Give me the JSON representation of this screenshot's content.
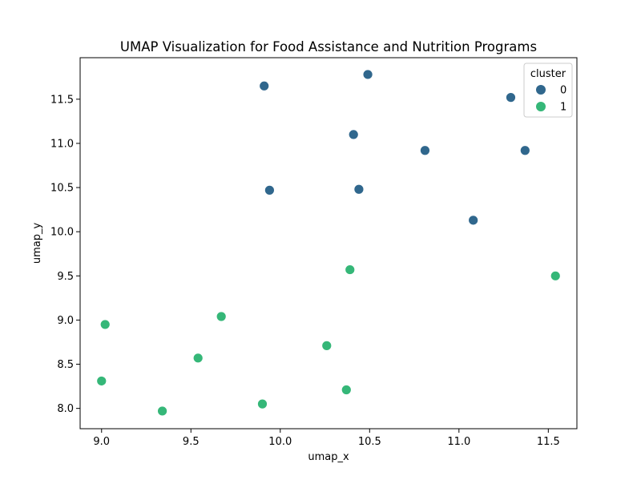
{
  "chart_data": {
    "type": "scatter",
    "title": "UMAP Visualization for Food Assistance and Nutrition Programs",
    "xlabel": "umap_x",
    "ylabel": "umap_y",
    "xlim": [
      8.88,
      11.66
    ],
    "ylim": [
      7.77,
      11.97
    ],
    "xticks": [
      {
        "value": 9.0,
        "label": "9.0"
      },
      {
        "value": 9.5,
        "label": "9.5"
      },
      {
        "value": 10.0,
        "label": "10.0"
      },
      {
        "value": 10.5,
        "label": "10.5"
      },
      {
        "value": 11.0,
        "label": "11.0"
      },
      {
        "value": 11.5,
        "label": "11.5"
      }
    ],
    "yticks": [
      {
        "value": 8.0,
        "label": "8.0"
      },
      {
        "value": 8.5,
        "label": "8.5"
      },
      {
        "value": 9.0,
        "label": "9.0"
      },
      {
        "value": 9.5,
        "label": "9.5"
      },
      {
        "value": 10.0,
        "label": "10.0"
      },
      {
        "value": 10.5,
        "label": "10.5"
      },
      {
        "value": 11.0,
        "label": "11.0"
      },
      {
        "value": 11.5,
        "label": "11.5"
      }
    ],
    "grid": false,
    "legend": {
      "title": "cluster",
      "placement": "top-right",
      "entries": [
        {
          "label": "0",
          "color": "#30678d"
        },
        {
          "label": "1",
          "color": "#35b778"
        }
      ]
    },
    "series": [
      {
        "name": "0",
        "color": "#30678d",
        "points": [
          {
            "x": 9.91,
            "y": 11.65
          },
          {
            "x": 10.49,
            "y": 11.78
          },
          {
            "x": 11.29,
            "y": 11.52
          },
          {
            "x": 10.41,
            "y": 11.1
          },
          {
            "x": 10.81,
            "y": 10.92
          },
          {
            "x": 11.37,
            "y": 10.92
          },
          {
            "x": 9.94,
            "y": 10.47
          },
          {
            "x": 10.44,
            "y": 10.48
          },
          {
            "x": 11.08,
            "y": 10.13
          }
        ]
      },
      {
        "name": "1",
        "color": "#35b778",
        "points": [
          {
            "x": 10.39,
            "y": 9.57
          },
          {
            "x": 11.54,
            "y": 9.5
          },
          {
            "x": 9.67,
            "y": 9.04
          },
          {
            "x": 9.02,
            "y": 8.95
          },
          {
            "x": 10.26,
            "y": 8.71
          },
          {
            "x": 9.54,
            "y": 8.57
          },
          {
            "x": 9.0,
            "y": 8.31
          },
          {
            "x": 10.37,
            "y": 8.21
          },
          {
            "x": 9.9,
            "y": 8.05
          },
          {
            "x": 9.34,
            "y": 7.97
          }
        ]
      }
    ]
  }
}
